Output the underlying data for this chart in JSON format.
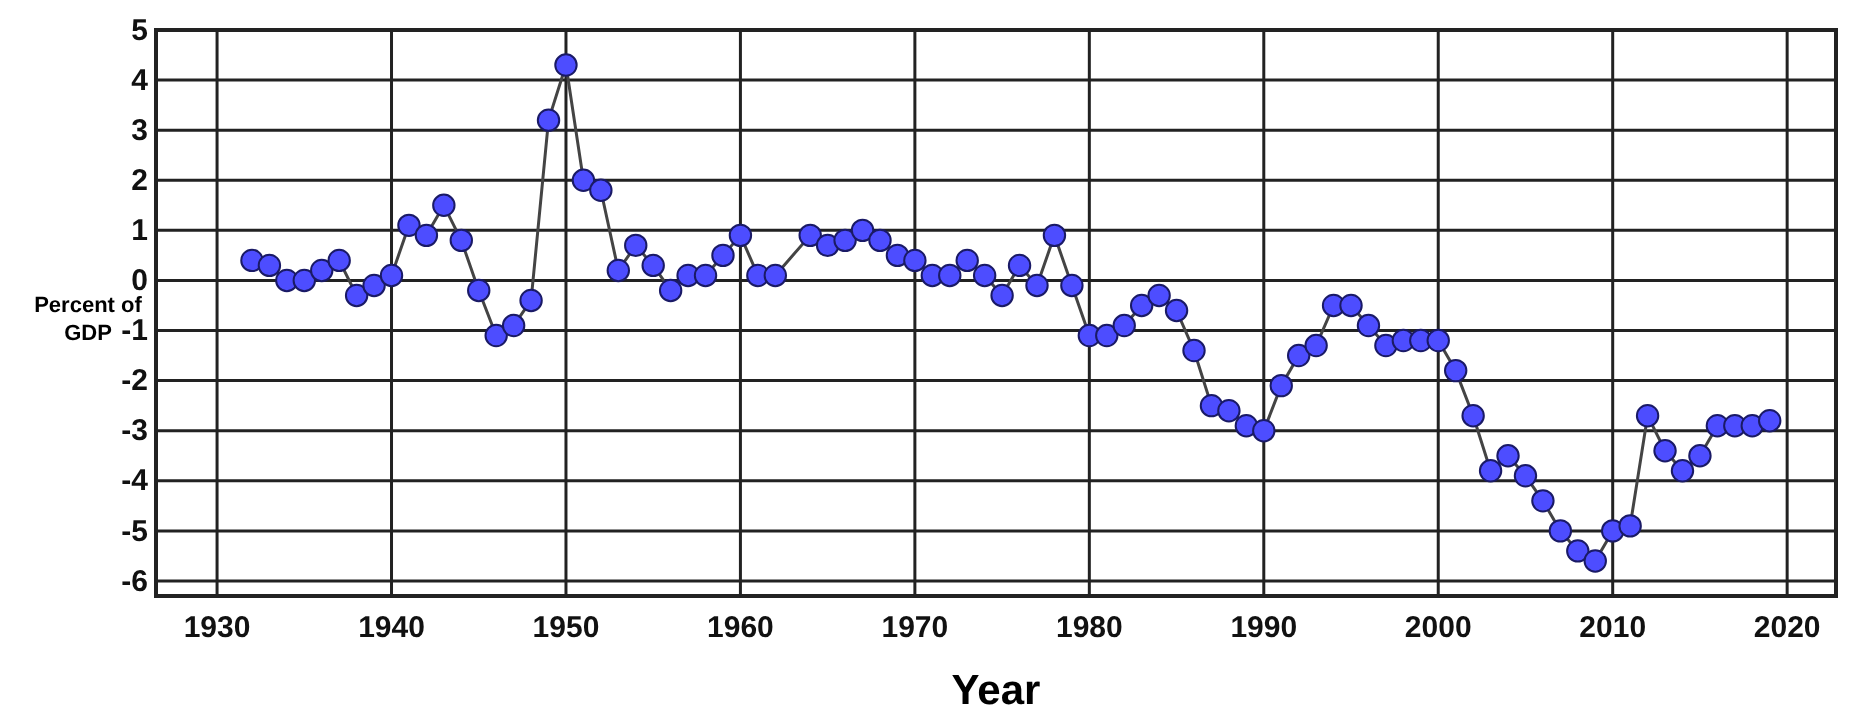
{
  "chart_data": {
    "type": "line",
    "xlabel": "Year",
    "ylabel": "Percent of\nGDP",
    "xlim": [
      1926.5,
      2022.8
    ],
    "xticks": [
      1930,
      1940,
      1950,
      1960,
      1970,
      1980,
      1990,
      2000,
      2010,
      2020
    ],
    "ylim": [
      -6.3,
      5
    ],
    "yticks": [
      -6,
      -5,
      -4,
      -3,
      -2,
      -1,
      0,
      1,
      2,
      3,
      4,
      5
    ],
    "grid": true,
    "marker": "circle",
    "line_style": "solid",
    "series": [
      {
        "color": "#4d4dff",
        "x": [
          1932,
          1933,
          1934,
          1935,
          1936,
          1937,
          1938,
          1939,
          1940,
          1941,
          1942,
          1943,
          1944,
          1945,
          1946,
          1947,
          1948,
          1949,
          1950,
          1951,
          1952,
          1953,
          1954,
          1955,
          1956,
          1957,
          1958,
          1959,
          1960,
          1961,
          1962,
          1964,
          1965,
          1966,
          1967,
          1968,
          1969,
          1970,
          1971,
          1972,
          1973,
          1974,
          1975,
          1976,
          1977,
          1978,
          1979,
          1980,
          1981,
          1982,
          1983,
          1984,
          1985,
          1986,
          1987,
          1988,
          1989,
          1990,
          1991,
          1992,
          1993,
          1994,
          1995,
          1996,
          1997,
          1998,
          1999,
          2000,
          2001,
          2002,
          2003,
          2004,
          2005,
          2006,
          2007,
          2008,
          2009,
          2010,
          2011,
          2012,
          2013,
          2014,
          2015,
          2016,
          2017,
          2018,
          2019
        ],
        "values": [
          0.4,
          0.3,
          0.0,
          0.0,
          0.2,
          0.4,
          -0.3,
          -0.1,
          0.1,
          1.1,
          0.9,
          1.5,
          0.8,
          -0.2,
          -1.1,
          -0.9,
          -0.4,
          3.2,
          4.3,
          2.0,
          1.8,
          0.2,
          0.7,
          0.3,
          -0.2,
          0.1,
          0.1,
          0.5,
          0.9,
          0.1,
          0.1,
          0.9,
          0.7,
          0.8,
          1.0,
          0.8,
          0.5,
          0.4,
          0.1,
          0.1,
          0.4,
          0.1,
          -0.3,
          0.3,
          -0.1,
          0.9,
          -0.1,
          -1.1,
          -1.1,
          -0.9,
          -0.5,
          -0.3,
          -0.6,
          -1.4,
          -2.5,
          -2.6,
          -2.9,
          -3.0,
          -2.1,
          -1.5,
          -1.3,
          -0.5,
          -0.5,
          -0.9,
          -1.3,
          -1.2,
          -1.2,
          -1.2,
          -1.8,
          -2.7,
          -3.8,
          -3.5,
          -3.9,
          -4.4,
          -5.0,
          -5.4,
          -5.6,
          -5.0,
          -4.9,
          -2.7,
          -3.4,
          -3.8,
          -3.5,
          -2.9,
          -2.9,
          -2.9,
          -2.8
        ]
      }
    ]
  }
}
